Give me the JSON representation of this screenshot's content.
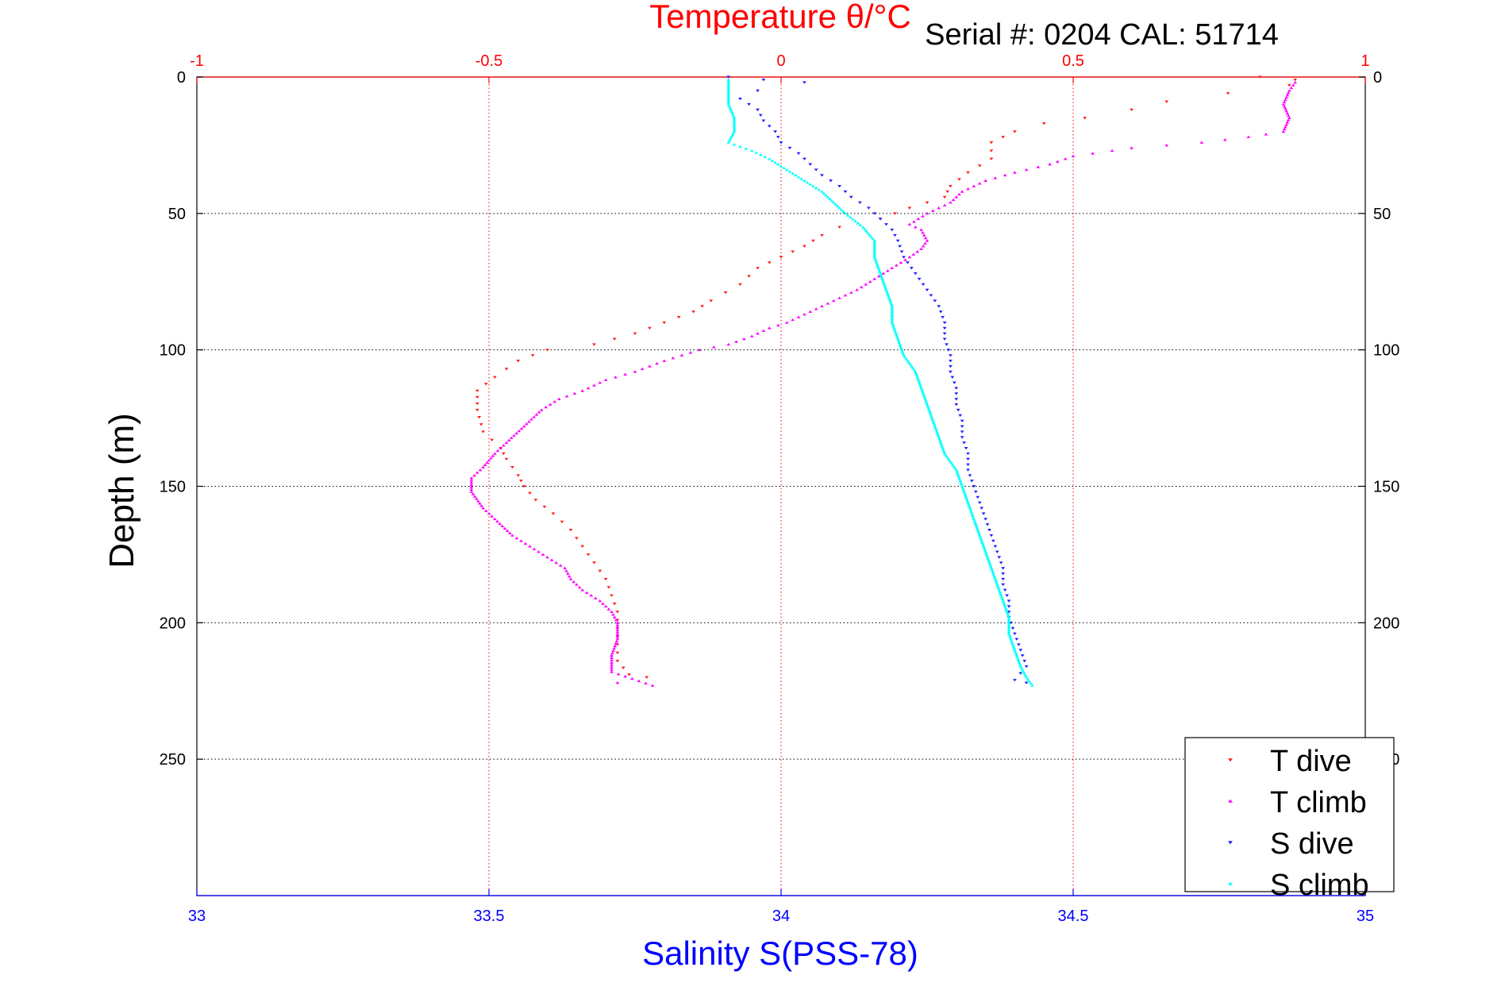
{
  "chart_data": {
    "type": "scatter",
    "title": "Temperature θ/°C",
    "annotation": "Serial #: 0204  CAL: 51714",
    "xlabel": "Salinity S(PSS-78)",
    "x2label": "Temperature θ/°C",
    "ylabel": "Depth (m)",
    "xlim": [
      33,
      35
    ],
    "x2lim": [
      -1,
      1
    ],
    "ylim": [
      0,
      300
    ],
    "y_reversed": true,
    "grid": true,
    "legend_position": "bottom-right",
    "x_ticks": [
      "33",
      "33.5",
      "34",
      "34.5",
      "35"
    ],
    "x2_ticks": [
      "-1",
      "-0.5",
      "0",
      "0.5",
      "1"
    ],
    "y_ticks": [
      "0",
      "50",
      "100",
      "150",
      "200",
      "250"
    ],
    "colors": {
      "temp_axis": "#ff0000",
      "sal_axis": "#0000ff",
      "t_dive": "#ff2020",
      "t_climb": "#ff00ff",
      "s_dive": "#2020ff",
      "s_climb": "#00ffff"
    },
    "series": [
      {
        "name": "T dive",
        "axis": "temperature",
        "marker": "triangle-down",
        "points": [
          [
            0.82,
            0
          ],
          [
            0.88,
            1
          ],
          [
            0.87,
            3
          ],
          [
            0.66,
            9
          ],
          [
            0.6,
            12
          ],
          [
            0.52,
            15
          ],
          [
            0.45,
            17
          ],
          [
            0.4,
            20
          ],
          [
            0.36,
            24
          ],
          [
            0.36,
            30
          ],
          [
            0.32,
            35
          ],
          [
            0.29,
            40
          ],
          [
            0.28,
            44
          ],
          [
            0.22,
            48
          ],
          [
            0.17,
            52
          ],
          [
            0.1,
            55
          ],
          [
            0.07,
            58
          ],
          [
            0.04,
            62
          ],
          [
            0.0,
            66
          ],
          [
            -0.04,
            70
          ],
          [
            -0.07,
            76
          ],
          [
            -0.12,
            82
          ],
          [
            -0.15,
            86
          ],
          [
            -0.2,
            90
          ],
          [
            -0.25,
            94
          ],
          [
            -0.32,
            98
          ],
          [
            -0.4,
            100
          ],
          [
            -0.45,
            104
          ],
          [
            -0.49,
            110
          ],
          [
            -0.52,
            115
          ],
          [
            -0.52,
            122
          ],
          [
            -0.51,
            130
          ],
          [
            -0.48,
            136
          ],
          [
            -0.47,
            140
          ],
          [
            -0.45,
            146
          ],
          [
            -0.44,
            150
          ],
          [
            -0.42,
            155
          ],
          [
            -0.39,
            160
          ],
          [
            -0.36,
            166
          ],
          [
            -0.34,
            172
          ],
          [
            -0.32,
            178
          ],
          [
            -0.3,
            184
          ],
          [
            -0.29,
            190
          ],
          [
            -0.28,
            196
          ],
          [
            -0.28,
            202
          ],
          [
            -0.28,
            208
          ],
          [
            -0.28,
            214
          ],
          [
            -0.26,
            219
          ],
          [
            -0.23,
            220
          ]
        ]
      },
      {
        "name": "T climb",
        "axis": "temperature",
        "marker": "triangle-up",
        "points": [
          [
            -0.28,
            222
          ],
          [
            -0.22,
            223
          ],
          [
            -0.29,
            218
          ],
          [
            -0.29,
            212
          ],
          [
            -0.28,
            206
          ],
          [
            -0.28,
            200
          ],
          [
            -0.29,
            196
          ],
          [
            -0.31,
            192
          ],
          [
            -0.34,
            188
          ],
          [
            -0.36,
            184
          ],
          [
            -0.37,
            180
          ],
          [
            -0.4,
            176
          ],
          [
            -0.43,
            172
          ],
          [
            -0.46,
            168
          ],
          [
            -0.49,
            162
          ],
          [
            -0.51,
            158
          ],
          [
            -0.53,
            152
          ],
          [
            -0.53,
            147
          ],
          [
            -0.51,
            143
          ],
          [
            -0.49,
            138
          ],
          [
            -0.47,
            134
          ],
          [
            -0.44,
            128
          ],
          [
            -0.41,
            122
          ],
          [
            -0.38,
            118
          ],
          [
            -0.34,
            115
          ],
          [
            -0.3,
            111
          ],
          [
            -0.25,
            108
          ],
          [
            -0.2,
            104
          ],
          [
            -0.14,
            100
          ],
          [
            -0.09,
            98
          ],
          [
            -0.05,
            95
          ],
          [
            -0.02,
            92
          ],
          [
            0.01,
            90
          ],
          [
            0.05,
            86
          ],
          [
            0.09,
            82
          ],
          [
            0.13,
            78
          ],
          [
            0.16,
            74
          ],
          [
            0.19,
            70
          ],
          [
            0.22,
            66
          ],
          [
            0.24,
            63
          ],
          [
            0.25,
            60
          ],
          [
            0.24,
            56
          ],
          [
            0.22,
            54
          ],
          [
            0.25,
            50
          ],
          [
            0.29,
            46
          ],
          [
            0.31,
            42
          ],
          [
            0.35,
            38
          ],
          [
            0.4,
            35
          ],
          [
            0.46,
            32
          ],
          [
            0.5,
            29
          ],
          [
            0.6,
            26
          ],
          [
            0.72,
            24
          ],
          [
            0.8,
            22
          ],
          [
            0.86,
            20
          ],
          [
            0.87,
            15
          ],
          [
            0.86,
            10
          ],
          [
            0.87,
            5
          ],
          [
            0.88,
            2
          ]
        ]
      },
      {
        "name": "S dive",
        "axis": "salinity",
        "marker": "triangle-down",
        "points": [
          [
            33.91,
            0
          ],
          [
            33.97,
            1
          ],
          [
            34.04,
            2
          ],
          [
            33.96,
            5
          ],
          [
            33.93,
            8
          ],
          [
            33.96,
            12
          ],
          [
            33.97,
            16
          ],
          [
            33.99,
            20
          ],
          [
            34.0,
            24
          ],
          [
            34.03,
            28
          ],
          [
            34.05,
            32
          ],
          [
            34.07,
            36
          ],
          [
            34.1,
            40
          ],
          [
            34.12,
            44
          ],
          [
            34.15,
            48
          ],
          [
            34.17,
            52
          ],
          [
            34.19,
            56
          ],
          [
            34.2,
            60
          ],
          [
            34.21,
            66
          ],
          [
            34.23,
            72
          ],
          [
            34.25,
            78
          ],
          [
            34.27,
            84
          ],
          [
            34.28,
            90
          ],
          [
            34.28,
            96
          ],
          [
            34.29,
            102
          ],
          [
            34.29,
            108
          ],
          [
            34.3,
            114
          ],
          [
            34.3,
            120
          ],
          [
            34.31,
            126
          ],
          [
            34.31,
            132
          ],
          [
            34.32,
            138
          ],
          [
            34.32,
            144
          ],
          [
            34.33,
            150
          ],
          [
            34.34,
            156
          ],
          [
            34.35,
            162
          ],
          [
            34.36,
            168
          ],
          [
            34.37,
            174
          ],
          [
            34.38,
            180
          ],
          [
            34.38,
            186
          ],
          [
            34.39,
            192
          ],
          [
            34.39,
            198
          ],
          [
            34.4,
            204
          ],
          [
            34.41,
            210
          ],
          [
            34.42,
            216
          ],
          [
            34.4,
            221
          ],
          [
            34.42,
            222
          ]
        ]
      },
      {
        "name": "S climb",
        "axis": "salinity",
        "marker": "triangle-up",
        "points": [
          [
            34.43,
            223
          ],
          [
            34.42,
            220
          ],
          [
            34.41,
            216
          ],
          [
            34.4,
            210
          ],
          [
            34.39,
            204
          ],
          [
            34.39,
            198
          ],
          [
            34.38,
            192
          ],
          [
            34.37,
            186
          ],
          [
            34.36,
            180
          ],
          [
            34.35,
            174
          ],
          [
            34.34,
            168
          ],
          [
            34.33,
            162
          ],
          [
            34.32,
            156
          ],
          [
            34.31,
            150
          ],
          [
            34.3,
            144
          ],
          [
            34.28,
            138
          ],
          [
            34.27,
            132
          ],
          [
            34.26,
            126
          ],
          [
            34.25,
            120
          ],
          [
            34.24,
            114
          ],
          [
            34.23,
            108
          ],
          [
            34.21,
            102
          ],
          [
            34.2,
            96
          ],
          [
            34.19,
            90
          ],
          [
            34.19,
            84
          ],
          [
            34.18,
            78
          ],
          [
            34.17,
            72
          ],
          [
            34.16,
            66
          ],
          [
            34.16,
            60
          ],
          [
            34.14,
            55
          ],
          [
            34.11,
            50
          ],
          [
            34.09,
            46
          ],
          [
            34.07,
            42
          ],
          [
            34.04,
            38
          ],
          [
            34.01,
            34
          ],
          [
            33.98,
            30
          ],
          [
            33.95,
            27
          ],
          [
            33.91,
            24
          ],
          [
            33.92,
            20
          ],
          [
            33.92,
            15
          ],
          [
            33.91,
            10
          ],
          [
            33.91,
            5
          ],
          [
            33.91,
            1
          ]
        ]
      }
    ]
  }
}
